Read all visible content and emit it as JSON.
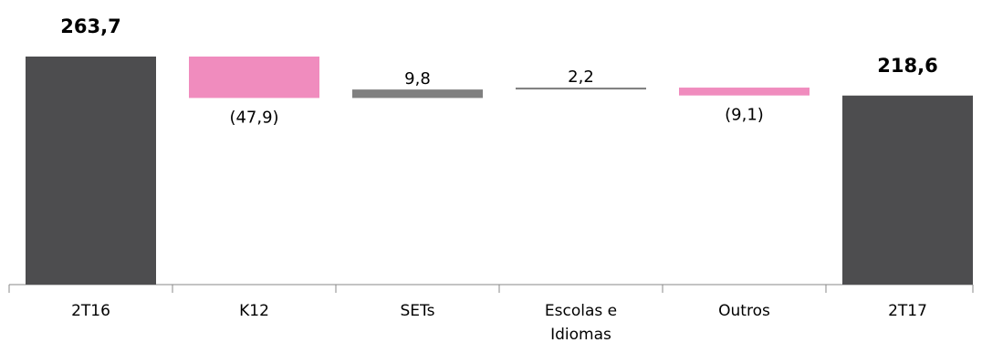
{
  "chart_data": {
    "type": "waterfall",
    "categories": [
      "2T16",
      "K12",
      "SETs",
      "Escolas e Idiomas",
      "Outros",
      "2T17"
    ],
    "values": [
      263.7,
      -47.9,
      9.8,
      2.2,
      -9.1,
      218.6
    ],
    "value_labels": [
      "263,7",
      "(47,9)",
      "9,8",
      "2,2",
      "(9,1)",
      "218,6"
    ],
    "is_total": [
      true,
      false,
      false,
      false,
      false,
      true
    ],
    "colors": [
      "#4d4d4f",
      "#f08cbe",
      "#808080",
      "#808080",
      "#f08cbe",
      "#4d4d4f"
    ]
  }
}
